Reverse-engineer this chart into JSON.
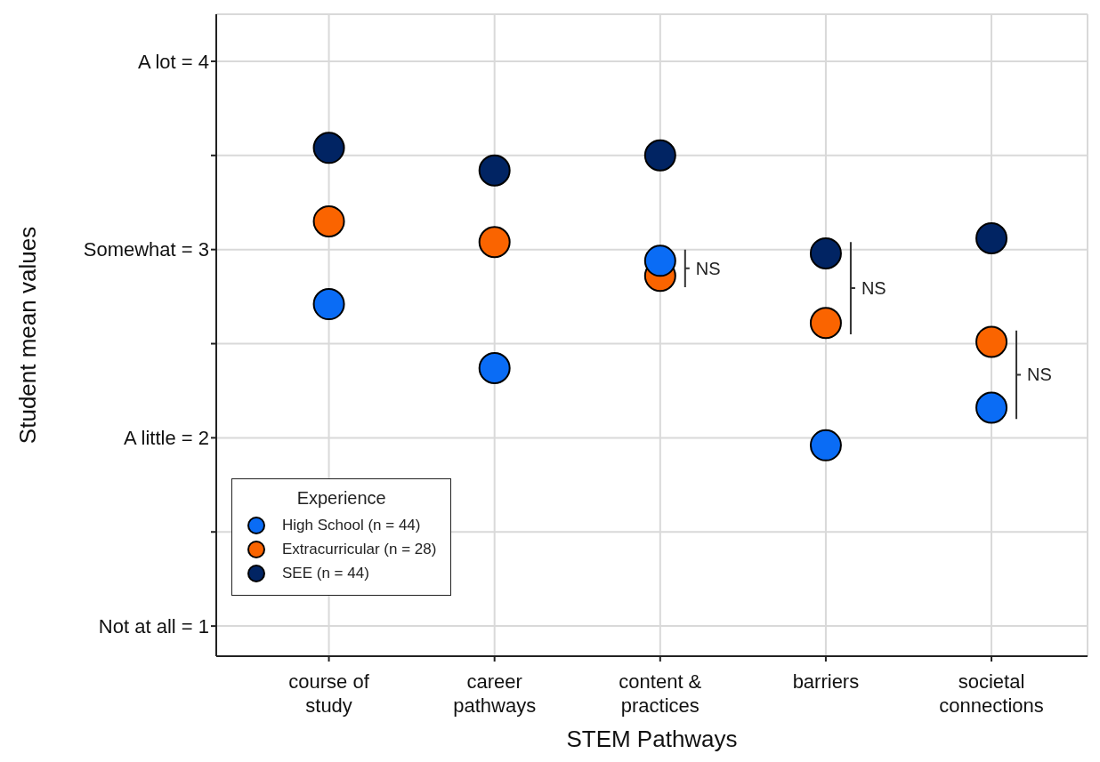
{
  "chart_data": {
    "type": "scatter",
    "xlabel": "STEM Pathways",
    "ylabel": "Student mean values",
    "legend_title": "Experience",
    "legend": "bottom left",
    "grid": true,
    "marker": "circle",
    "categories": [
      "course of study",
      "career pathways",
      "content & practices",
      "barriers",
      "societal connections"
    ],
    "ylim": [
      0.84,
      4.25
    ],
    "yticks": [
      {
        "value": 1,
        "label": "Not at all = 1"
      },
      {
        "value": 1.5,
        "label": null
      },
      {
        "value": 2,
        "label": "A little = 2"
      },
      {
        "value": 2.5,
        "label": null
      },
      {
        "value": 3,
        "label": "Somewhat = 3"
      },
      {
        "value": 3.5,
        "label": null
      },
      {
        "value": 4,
        "label": "A lot = 4"
      }
    ],
    "series": [
      {
        "name": "High School (n = 44)",
        "color": "#0a6cf5",
        "values": [
          2.71,
          2.37,
          2.94,
          1.96,
          2.16
        ]
      },
      {
        "name": "Extracurricular (n = 28)",
        "color": "#fa6400",
        "values": [
          3.15,
          3.04,
          2.86,
          2.61,
          2.51
        ]
      },
      {
        "name": "SEE (n = 44)",
        "color": "#012463",
        "values": [
          3.54,
          3.42,
          3.5,
          2.98,
          3.06
        ]
      }
    ],
    "annotations": [
      "NS",
      "NS",
      "NS"
    ]
  }
}
